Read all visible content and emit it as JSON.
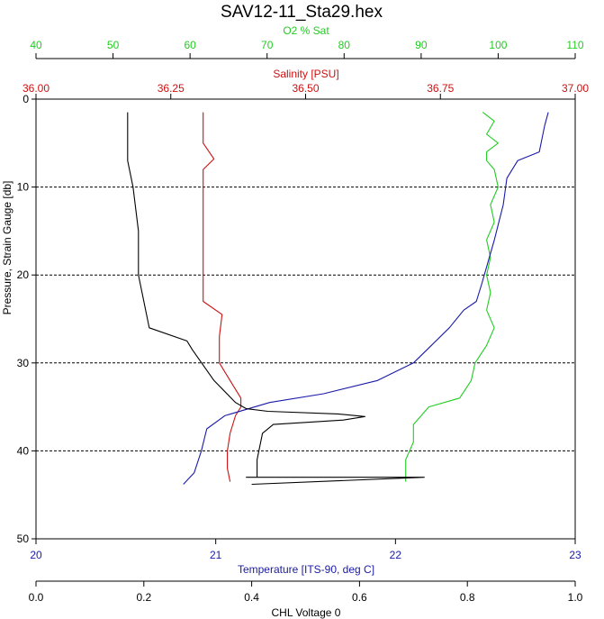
{
  "chart_data": {
    "type": "line",
    "title": "SAV12-11_Sta29.hex",
    "colors": {
      "o2": "#22cc22",
      "salinity": "#cc1111",
      "temperature": "#1a1aa8",
      "chl": "#000000",
      "grid": "#000000"
    },
    "y_axis": {
      "label": "Pressure, Strain Gauge [db]",
      "range": [
        0,
        50
      ],
      "inverted": true,
      "ticks": [
        "0",
        "10",
        "20",
        "30",
        "40",
        "50"
      ],
      "grid": "dashed"
    },
    "axes": {
      "o2": {
        "label": "O2 % Sat",
        "range": [
          40,
          110
        ],
        "ticks": [
          "40",
          "50",
          "60",
          "70",
          "80",
          "90",
          "100",
          "110"
        ]
      },
      "salinity": {
        "label": "Salinity [PSU]",
        "range": [
          36.0,
          37.0
        ],
        "ticks": [
          "36.00",
          "36.25",
          "36.50",
          "36.75",
          "37.00"
        ]
      },
      "temperature": {
        "label": "Temperature [ITS-90, deg C]",
        "range": [
          20,
          23
        ],
        "ticks": [
          "20",
          "21",
          "22",
          "23"
        ]
      },
      "chl": {
        "label": "CHL Voltage 0",
        "range": [
          0,
          1
        ],
        "ticks": [
          "0.0",
          "0.2",
          "0.4",
          "0.6",
          "0.8",
          "1.0"
        ]
      }
    },
    "series": {
      "o2": [
        [
          98,
          1.5
        ],
        [
          99.5,
          2.5
        ],
        [
          98.5,
          4
        ],
        [
          100,
          5
        ],
        [
          98.5,
          6
        ],
        [
          98.5,
          7
        ],
        [
          99.5,
          8
        ],
        [
          100,
          10
        ],
        [
          99,
          12
        ],
        [
          99.5,
          14
        ],
        [
          98.5,
          16
        ],
        [
          99,
          18
        ],
        [
          98.5,
          20
        ],
        [
          99,
          22
        ],
        [
          98.5,
          24
        ],
        [
          99.5,
          26
        ],
        [
          98.5,
          28
        ],
        [
          97,
          30
        ],
        [
          96.5,
          32
        ],
        [
          95,
          34
        ],
        [
          91,
          35
        ],
        [
          89,
          37
        ],
        [
          89,
          39
        ],
        [
          88,
          41
        ],
        [
          88,
          43
        ],
        [
          88,
          43.5
        ]
      ],
      "salinity": [
        [
          36.31,
          1.5
        ],
        [
          36.31,
          5
        ],
        [
          36.33,
          6.8
        ],
        [
          36.31,
          8
        ],
        [
          36.31,
          15
        ],
        [
          36.31,
          20
        ],
        [
          36.31,
          23
        ],
        [
          36.345,
          24.5
        ],
        [
          36.34,
          27
        ],
        [
          36.34,
          30
        ],
        [
          36.36,
          32
        ],
        [
          36.38,
          34
        ],
        [
          36.38,
          35
        ],
        [
          36.37,
          36
        ],
        [
          36.36,
          38
        ],
        [
          36.355,
          40
        ],
        [
          36.355,
          42
        ],
        [
          36.36,
          43.5
        ]
      ],
      "temperature": [
        [
          22.85,
          1.5
        ],
        [
          22.83,
          3
        ],
        [
          22.8,
          6
        ],
        [
          22.68,
          7
        ],
        [
          22.62,
          9
        ],
        [
          22.6,
          12
        ],
        [
          22.55,
          16
        ],
        [
          22.48,
          21
        ],
        [
          22.45,
          23
        ],
        [
          22.38,
          24
        ],
        [
          22.3,
          26
        ],
        [
          22.2,
          28
        ],
        [
          22.1,
          30
        ],
        [
          21.9,
          32
        ],
        [
          21.6,
          33.5
        ],
        [
          21.3,
          34.5
        ],
        [
          21.05,
          36
        ],
        [
          20.95,
          37.5
        ],
        [
          20.92,
          40
        ],
        [
          20.88,
          42.5
        ],
        [
          20.82,
          43.8
        ]
      ],
      "chl": [
        [
          0.17,
          1.5
        ],
        [
          0.17,
          7
        ],
        [
          0.18,
          10
        ],
        [
          0.19,
          15
        ],
        [
          0.19,
          20
        ],
        [
          0.2,
          23
        ],
        [
          0.21,
          26
        ],
        [
          0.28,
          27.5
        ],
        [
          0.29,
          28.5
        ],
        [
          0.33,
          32
        ],
        [
          0.37,
          34.5
        ],
        [
          0.39,
          35.2
        ],
        [
          0.43,
          35.5
        ],
        [
          0.56,
          35.8
        ],
        [
          0.61,
          36.1
        ],
        [
          0.57,
          36.5
        ],
        [
          0.44,
          37
        ],
        [
          0.42,
          38
        ],
        [
          0.41,
          41
        ],
        [
          0.41,
          43
        ],
        [
          0.39,
          43
        ],
        [
          0.72,
          43
        ],
        [
          0.4,
          43.8
        ]
      ]
    }
  }
}
